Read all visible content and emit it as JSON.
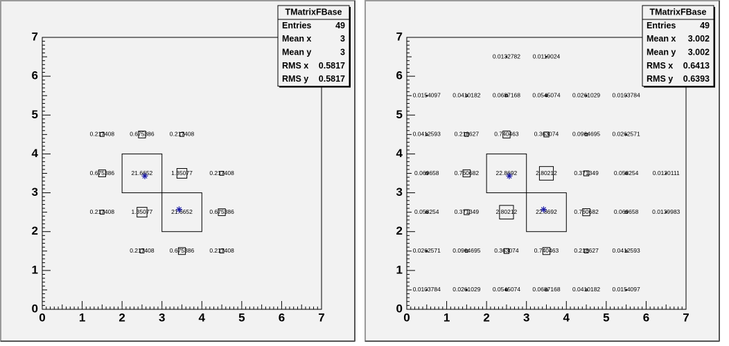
{
  "chart_data": [
    {
      "type": "box",
      "title": "TMatrixFBase",
      "xlim": [
        0,
        7
      ],
      "ylim": [
        0,
        7
      ],
      "xticks": [
        0,
        1,
        2,
        3,
        4,
        5,
        6,
        7
      ],
      "yticks": [
        0,
        1,
        2,
        3,
        4,
        5,
        6,
        7
      ],
      "stats": [
        {
          "label": "Entries",
          "value": 49
        },
        {
          "label": "Mean x",
          "value": 3
        },
        {
          "label": "Mean y",
          "value": 3
        },
        {
          "label": "RMS x",
          "value": 0.5817
        },
        {
          "label": "RMS y",
          "value": 0.5817
        }
      ],
      "cells": [
        {
          "x": 1.5,
          "y": 4.5,
          "value": 0.217408
        },
        {
          "x": 2.5,
          "y": 4.5,
          "value": 0.675386
        },
        {
          "x": 3.5,
          "y": 4.5,
          "value": 0.217408
        },
        {
          "x": 1.5,
          "y": 3.5,
          "value": 0.675386
        },
        {
          "x": 2.5,
          "y": 3.5,
          "value": 21.6652
        },
        {
          "x": 3.5,
          "y": 3.5,
          "value": 1.35077
        },
        {
          "x": 4.5,
          "y": 3.5,
          "value": 0.217408
        },
        {
          "x": 1.5,
          "y": 2.5,
          "value": 0.217408
        },
        {
          "x": 2.5,
          "y": 2.5,
          "value": 1.35077
        },
        {
          "x": 3.5,
          "y": 2.5,
          "value": 21.6652
        },
        {
          "x": 4.5,
          "y": 2.5,
          "value": 0.675386
        },
        {
          "x": 2.5,
          "y": 1.5,
          "value": 0.217408
        },
        {
          "x": 3.5,
          "y": 1.5,
          "value": 0.675386
        },
        {
          "x": 4.5,
          "y": 1.5,
          "value": 0.217408
        }
      ],
      "points": {
        "color": "#1a1aa8",
        "x": [
          2.57,
          3.43
        ],
        "y": [
          3.43,
          2.57
        ]
      }
    },
    {
      "type": "box",
      "title": "TMatrixFBase",
      "xlim": [
        0,
        7
      ],
      "ylim": [
        0,
        7
      ],
      "xticks": [
        0,
        1,
        2,
        3,
        4,
        5,
        6,
        7
      ],
      "yticks": [
        0,
        1,
        2,
        3,
        4,
        5,
        6,
        7
      ],
      "stats": [
        {
          "label": "Entries",
          "value": 49
        },
        {
          "label": "Mean x",
          "value": 3.002
        },
        {
          "label": "Mean y",
          "value": 3.002
        },
        {
          "label": "RMS x",
          "value": 0.6413
        },
        {
          "label": "RMS y",
          "value": 0.6393
        }
      ],
      "cells": [
        {
          "x": 2.5,
          "y": 6.5,
          "value": 0.0132782
        },
        {
          "x": 3.5,
          "y": 6.5,
          "value": 0.0119024
        },
        {
          "x": 0.5,
          "y": 5.5,
          "value": 0.0154097
        },
        {
          "x": 1.5,
          "y": 5.5,
          "value": 0.0410182
        },
        {
          "x": 2.5,
          "y": 5.5,
          "value": 0.0687168
        },
        {
          "x": 3.5,
          "y": 5.5,
          "value": 0.0545074
        },
        {
          "x": 4.5,
          "y": 5.5,
          "value": 0.0261029
        },
        {
          "x": 5.5,
          "y": 5.5,
          "value": 0.0103784
        },
        {
          "x": 0.5,
          "y": 4.5,
          "value": 0.0412593
        },
        {
          "x": 1.5,
          "y": 4.5,
          "value": 0.218627
        },
        {
          "x": 2.5,
          "y": 4.5,
          "value": 0.740463
        },
        {
          "x": 3.5,
          "y": 4.5,
          "value": 0.363074
        },
        {
          "x": 4.5,
          "y": 4.5,
          "value": 0.0964695
        },
        {
          "x": 5.5,
          "y": 4.5,
          "value": 0.0262571
        },
        {
          "x": 0.5,
          "y": 3.5,
          "value": 0.069658
        },
        {
          "x": 1.5,
          "y": 3.5,
          "value": 0.760682
        },
        {
          "x": 2.5,
          "y": 3.5,
          "value": 22.8692
        },
        {
          "x": 3.5,
          "y": 3.5,
          "value": 2.80212
        },
        {
          "x": 4.5,
          "y": 3.5,
          "value": 0.371349
        },
        {
          "x": 5.5,
          "y": 3.5,
          "value": 0.058254
        },
        {
          "x": 6.5,
          "y": 3.5,
          "value": 0.0120111
        },
        {
          "x": 0.5,
          "y": 2.5,
          "value": 0.058254
        },
        {
          "x": 1.5,
          "y": 2.5,
          "value": 0.371349
        },
        {
          "x": 2.5,
          "y": 2.5,
          "value": 2.80212
        },
        {
          "x": 3.5,
          "y": 2.5,
          "value": 22.8692
        },
        {
          "x": 4.5,
          "y": 2.5,
          "value": 0.760682
        },
        {
          "x": 5.5,
          "y": 2.5,
          "value": 0.069658
        },
        {
          "x": 6.5,
          "y": 2.5,
          "value": 0.0139983
        },
        {
          "x": 0.5,
          "y": 1.5,
          "value": 0.0262571
        },
        {
          "x": 1.5,
          "y": 1.5,
          "value": 0.0964695
        },
        {
          "x": 2.5,
          "y": 1.5,
          "value": 0.363074
        },
        {
          "x": 3.5,
          "y": 1.5,
          "value": 0.740463
        },
        {
          "x": 4.5,
          "y": 1.5,
          "value": 0.218627
        },
        {
          "x": 5.5,
          "y": 1.5,
          "value": 0.0412593
        },
        {
          "x": 0.5,
          "y": 0.5,
          "value": 0.0103784
        },
        {
          "x": 1.5,
          "y": 0.5,
          "value": 0.0261029
        },
        {
          "x": 2.5,
          "y": 0.5,
          "value": 0.0545074
        },
        {
          "x": 3.5,
          "y": 0.5,
          "value": 0.0687168
        },
        {
          "x": 4.5,
          "y": 0.5,
          "value": 0.0410182
        },
        {
          "x": 5.5,
          "y": 0.5,
          "value": 0.0154097
        }
      ],
      "points": {
        "color": "#1a1aa8",
        "x": [
          2.57,
          3.43
        ],
        "y": [
          3.43,
          2.57
        ]
      }
    }
  ]
}
